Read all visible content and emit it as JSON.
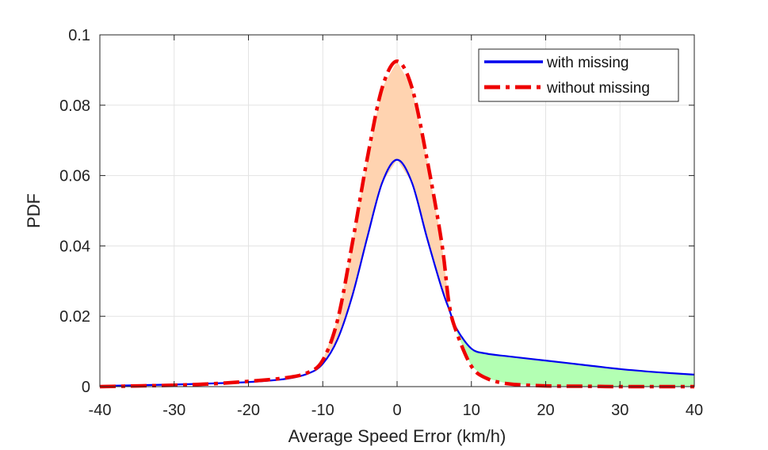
{
  "chart_data": {
    "type": "line",
    "title": "",
    "xlabel": "Average Speed Error (km/h)",
    "ylabel": "PDF",
    "xlim": [
      -40,
      40
    ],
    "ylim": [
      0,
      0.1
    ],
    "xticks": [
      -40,
      -30,
      -20,
      -10,
      0,
      10,
      20,
      30,
      40
    ],
    "xtick_labels": [
      "-40",
      "-30",
      "-20",
      "-10",
      "0",
      "10",
      "20",
      "30",
      "40"
    ],
    "yticks": [
      0,
      0.02,
      0.04,
      0.06,
      0.08,
      0.1
    ],
    "ytick_labels": [
      "0",
      "0.02",
      "0.04",
      "0.06",
      "0.08",
      "0.1"
    ],
    "grid": true,
    "legend_position": "top-right",
    "series": [
      {
        "name": "with missing",
        "color": "#0000ee",
        "style": "solid",
        "x": [
          -40,
          -35,
          -30,
          -25,
          -20,
          -15,
          -12,
          -10,
          -8,
          -6,
          -4,
          -2,
          0,
          2,
          4,
          6,
          7,
          8,
          10,
          12,
          15,
          20,
          25,
          30,
          35,
          40
        ],
        "y": [
          0.0002,
          0.0004,
          0.0006,
          0.0009,
          0.0013,
          0.0022,
          0.0037,
          0.0065,
          0.0135,
          0.026,
          0.0425,
          0.058,
          0.0645,
          0.058,
          0.0425,
          0.028,
          0.022,
          0.0165,
          0.0108,
          0.0094,
          0.0086,
          0.0074,
          0.0062,
          0.005,
          0.0041,
          0.0034
        ]
      },
      {
        "name": "without missing",
        "color": "#ee0000",
        "style": "dashed",
        "x": [
          -40,
          -35,
          -30,
          -25,
          -20,
          -15,
          -12,
          -10,
          -8,
          -6,
          -4,
          -2,
          0,
          2,
          4,
          6,
          7,
          8,
          10,
          12,
          15,
          20,
          25,
          30,
          35,
          40
        ],
        "y": [
          0.0,
          0.0002,
          0.0004,
          0.0008,
          0.0015,
          0.0025,
          0.004,
          0.0075,
          0.019,
          0.041,
          0.065,
          0.085,
          0.0925,
          0.085,
          0.065,
          0.041,
          0.0235,
          0.0155,
          0.0058,
          0.0024,
          0.0008,
          0.0002,
          0.0001,
          0.0,
          0.0,
          0.0
        ]
      }
    ],
    "shaded_regions": [
      {
        "name": "peak-difference",
        "color": "#ffd3b0",
        "between": [
          "without missing",
          "with missing"
        ],
        "x_range": [
          -10,
          7
        ]
      },
      {
        "name": "tail-difference",
        "color": "#b3ffb3",
        "between": [
          "with missing",
          "without missing"
        ],
        "x_range": [
          7,
          40
        ]
      }
    ]
  }
}
